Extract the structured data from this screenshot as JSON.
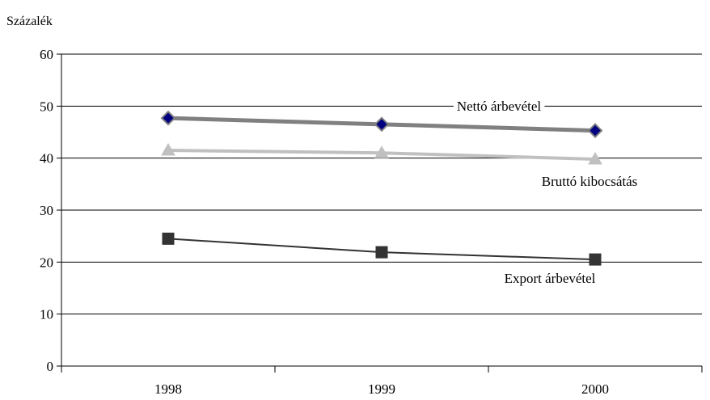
{
  "chart_data": {
    "type": "line",
    "title": "",
    "xlabel": "",
    "ylabel": "Százalék",
    "ylim": [
      0,
      60
    ],
    "yticks": [
      0,
      10,
      20,
      30,
      40,
      50,
      60
    ],
    "categories": [
      "1998",
      "1999",
      "2000"
    ],
    "grid": true,
    "legend": "inline labels next to lines",
    "series": [
      {
        "name": "Nettó árbevétel",
        "values": [
          47.7,
          46.5,
          45.3
        ],
        "color": "#808080",
        "marker": "diamond",
        "marker_color": "#000080"
      },
      {
        "name": "Bruttó kibocsátás",
        "values": [
          41.5,
          41.0,
          39.8
        ],
        "color": "#c0c0c0",
        "marker": "triangle",
        "marker_color": "#c0c0c0"
      },
      {
        "name": "Export árbevétel",
        "values": [
          24.5,
          21.9,
          20.5
        ],
        "color": "#333333",
        "marker": "square",
        "marker_color": "#333333"
      }
    ]
  }
}
